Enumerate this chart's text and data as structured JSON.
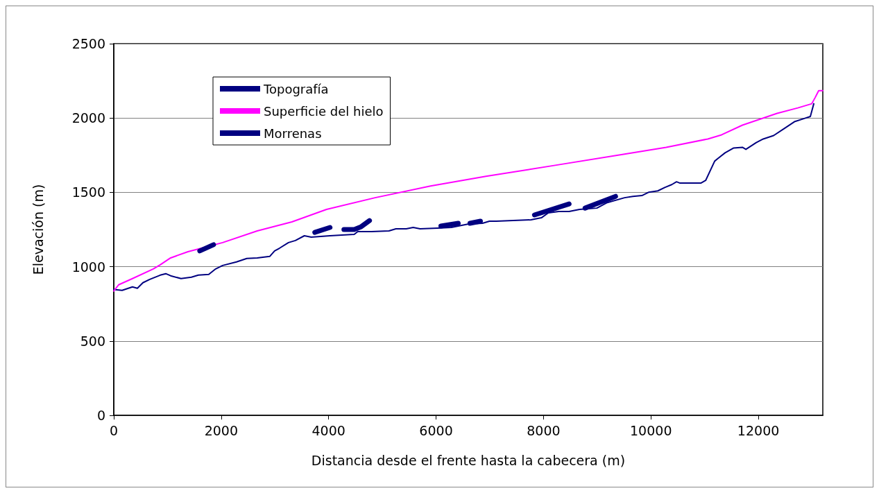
{
  "chart_data": {
    "type": "line",
    "xlabel": "Distancia desde el frente hasta la cabecera (m)",
    "ylabel": "Elevación (m)",
    "xlim": [
      0,
      13200
    ],
    "xticks": [
      0,
      2000,
      4000,
      6000,
      8000,
      10000,
      12000
    ],
    "ylim": [
      0,
      2500
    ],
    "yticks": [
      0,
      500,
      1000,
      1500,
      2000,
      2500
    ],
    "grid": "y",
    "legend": "top left",
    "marker": "none",
    "line_style": "solid",
    "series": [
      {
        "name": "Topografía",
        "color": "#000080",
        "x": [
          0,
          155,
          348,
          439,
          542,
          671,
          865,
          968,
          1058,
          1252,
          1445,
          1574,
          1768,
          1897,
          2026,
          2284,
          2477,
          2671,
          2903,
          2994,
          3084,
          3252,
          3381,
          3548,
          3677,
          4026,
          4477,
          4542,
          4800,
          5123,
          5252,
          5445,
          5574,
          5703,
          6026,
          6284,
          6606,
          6865,
          6994,
          7123,
          7768,
          7961,
          8090,
          8284,
          8477,
          8671,
          8994,
          9187,
          9510,
          9665,
          9832,
          9961,
          10129,
          10258,
          10387,
          10477,
          10542,
          10929,
          11019,
          11187,
          11252,
          11381,
          11535,
          11703,
          11768,
          11961,
          12090,
          12284,
          12477,
          12671,
          12865,
          12968,
          13032
        ],
        "values": [
          846,
          841,
          864,
          855,
          892,
          915,
          943,
          953,
          939,
          920,
          929,
          943,
          948,
          985,
          1008,
          1032,
          1055,
          1059,
          1069,
          1106,
          1124,
          1162,
          1176,
          1208,
          1199,
          1208,
          1217,
          1236,
          1236,
          1241,
          1255,
          1255,
          1264,
          1255,
          1259,
          1264,
          1287,
          1292,
          1306,
          1306,
          1315,
          1329,
          1362,
          1371,
          1371,
          1385,
          1394,
          1431,
          1464,
          1473,
          1478,
          1501,
          1510,
          1533,
          1552,
          1571,
          1562,
          1562,
          1580,
          1710,
          1729,
          1766,
          1798,
          1803,
          1789,
          1835,
          1859,
          1882,
          1928,
          1975,
          1998,
          2010,
          2096
        ]
      },
      {
        "name": "Superficie del hielo",
        "color": "#ff00ff",
        "x": [
          0,
          90,
          348,
          735,
          865,
          1058,
          1381,
          2026,
          2671,
          3316,
          3961,
          4865,
          5897,
          6929,
          8219,
          9510,
          10284,
          11058,
          11316,
          11703,
          12348,
          12735,
          12994,
          13058,
          13123,
          13200
        ],
        "values": [
          836,
          878,
          920,
          985,
          1013,
          1059,
          1101,
          1162,
          1241,
          1301,
          1385,
          1464,
          1543,
          1608,
          1682,
          1757,
          1803,
          1859,
          1887,
          1952,
          2031,
          2068,
          2096,
          2138,
          2184,
          2184
        ]
      },
      {
        "name": "Morrenas",
        "color": "#000080",
        "x": [
          1600,
          1858,
          1900,
          3742,
          4026,
          4100,
          4284,
          4477,
          4606,
          4761,
          5000,
          6090,
          6413,
          6500,
          6632,
          6826,
          7000,
          7832,
          8477,
          8600,
          8774,
          9342
        ],
        "values": [
          1106,
          1148,
          null,
          1231,
          1264,
          null,
          1250,
          1250,
          1269,
          1310,
          null,
          1273,
          1292,
          null,
          1292,
          1306,
          null,
          1348,
          1422,
          null,
          1394,
          1473
        ]
      }
    ]
  }
}
